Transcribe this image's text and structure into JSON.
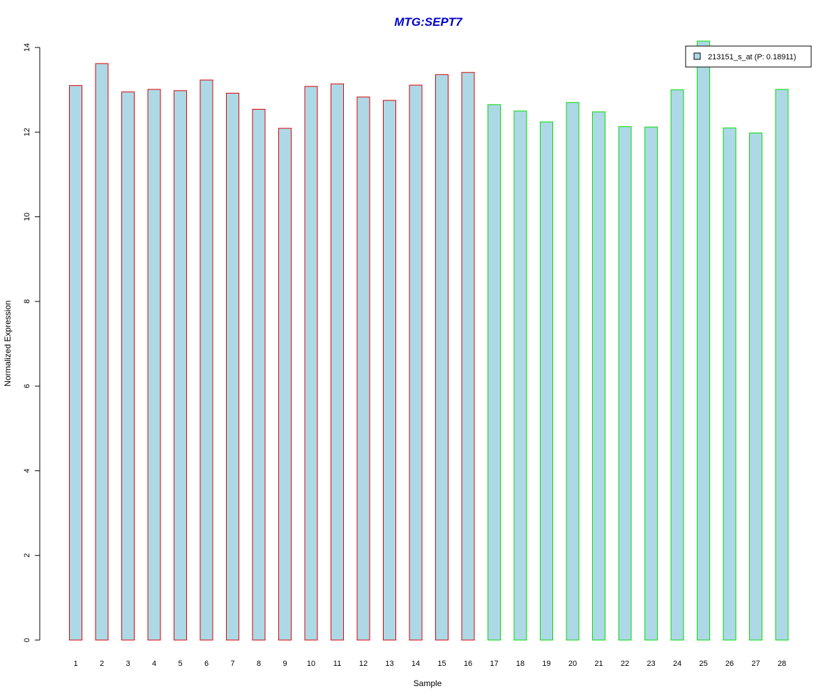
{
  "chart_data": {
    "type": "bar",
    "title": "MTG:SEPT7",
    "xlabel": "Sample",
    "ylabel": "Normalized Expression",
    "categories": [
      "1",
      "2",
      "3",
      "4",
      "5",
      "6",
      "7",
      "8",
      "9",
      "10",
      "11",
      "12",
      "13",
      "14",
      "15",
      "16",
      "17",
      "18",
      "19",
      "20",
      "21",
      "22",
      "23",
      "24",
      "25",
      "26",
      "27",
      "28"
    ],
    "series": [
      {
        "name": "213151_s_at (P: 0.18911)",
        "values": [
          13.1,
          13.62,
          12.95,
          13.01,
          12.98,
          13.23,
          12.92,
          12.54,
          12.09,
          13.08,
          13.14,
          12.83,
          12.75,
          13.11,
          13.36,
          13.41,
          12.65,
          12.5,
          12.24,
          12.7,
          12.48,
          12.13,
          12.12,
          13.0,
          14.15,
          12.1,
          11.98,
          13.01
        ]
      }
    ],
    "group_of_sample": [
      1,
      1,
      1,
      1,
      1,
      1,
      1,
      1,
      1,
      1,
      1,
      1,
      1,
      1,
      1,
      1,
      2,
      2,
      2,
      2,
      2,
      2,
      2,
      2,
      2,
      2,
      2,
      2
    ],
    "yticks": [
      "0",
      "2",
      "4",
      "6",
      "8",
      "10",
      "12",
      "14"
    ],
    "ylim": [
      0,
      14
    ],
    "grid": false,
    "legend_position": "top-right",
    "colors": {
      "title": "#0000CC",
      "bar_fill": "#ADD8E6",
      "group1_border": "#DD0000",
      "group2_border": "#00DD00",
      "axis": "#000000"
    }
  }
}
